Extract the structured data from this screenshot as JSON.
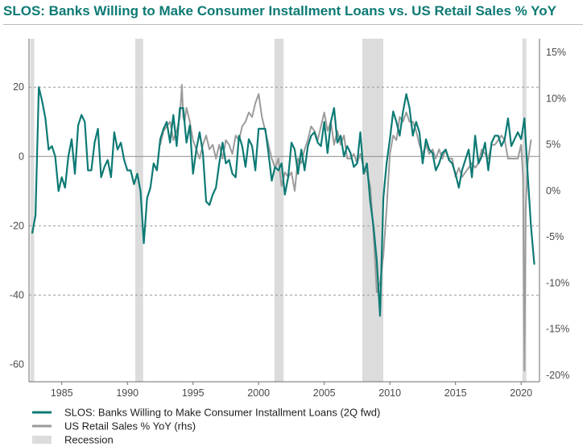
{
  "title": "SLOS: Banks Willing to Make Consumer Installment Loans vs. US Retail Sales % YoY",
  "colors": {
    "title": "#0d7a74",
    "slos": "#0d7a74",
    "retail": "#9b9b9b",
    "recession": "#dcdcdc",
    "grid": "#9a9a9a"
  },
  "chart_data": {
    "type": "line",
    "title": "SLOS: Banks Willing to Make Consumer Installment Loans vs. US Retail Sales % YoY",
    "x_range": [
      1982.5,
      2021.4
    ],
    "x_ticks": [
      {
        "value": 1985,
        "label": "1985"
      },
      {
        "value": 1990,
        "label": "1990"
      },
      {
        "value": 1995,
        "label": "1995"
      },
      {
        "value": 2000,
        "label": "2000"
      },
      {
        "value": 2005,
        "label": "2005"
      },
      {
        "value": 2010,
        "label": "2010"
      },
      {
        "value": 2015,
        "label": "2015"
      },
      {
        "value": 2020,
        "label": "2020"
      }
    ],
    "y_left": {
      "range": [
        -65,
        34
      ],
      "ticks": [
        -60,
        -40,
        -20,
        0,
        20
      ],
      "labels": [
        "-60",
        "-40",
        "-20",
        "0",
        "20"
      ],
      "gridlines": [
        -40,
        -20,
        20
      ]
    },
    "y_right": {
      "range": [
        -20.7,
        16.5
      ],
      "ticks": [
        15,
        10,
        5,
        0,
        -5,
        -10,
        -15,
        -20
      ],
      "labels": [
        "15%",
        "10%",
        "5%",
        "0%",
        "-5%",
        "-10%",
        "-15%",
        "-20%"
      ]
    },
    "zero_line": 0,
    "legend_position": "bottom-left",
    "legend": [
      {
        "label": "SLOS: Banks Willing to Make Consumer Installment Loans (2Q fwd)",
        "kind": "line",
        "color": "#0d7a74"
      },
      {
        "label": "US Retail Sales % YoY (rhs)",
        "kind": "line",
        "color": "#9b9b9b"
      },
      {
        "label": "Recession",
        "kind": "box",
        "color": "#dcdcdc"
      }
    ],
    "recessions": [
      [
        1982.6,
        1982.9
      ],
      [
        1990.6,
        1991.2
      ],
      [
        2001.2,
        2001.9
      ],
      [
        2007.9,
        2009.5
      ],
      [
        2020.1,
        2020.4
      ]
    ],
    "series": [
      {
        "name": "SLOS: Banks Willing to Make Consumer Installment Loans (2Q fwd)",
        "axis": "left",
        "x": [
          1982.75,
          1983.0,
          1983.25,
          1983.5,
          1983.75,
          1984.0,
          1984.25,
          1984.5,
          1984.75,
          1985.0,
          1985.25,
          1985.5,
          1985.75,
          1986.0,
          1986.25,
          1986.5,
          1986.75,
          1987.0,
          1987.25,
          1987.5,
          1987.75,
          1988.0,
          1988.25,
          1988.5,
          1988.75,
          1989.0,
          1989.25,
          1989.5,
          1989.75,
          1990.0,
          1990.25,
          1990.5,
          1990.75,
          1991.0,
          1991.25,
          1991.5,
          1991.75,
          1992.0,
          1992.25,
          1992.5,
          1992.75,
          1993.0,
          1993.25,
          1993.5,
          1993.75,
          1994.0,
          1994.25,
          1994.5,
          1994.75,
          1995.0,
          1995.25,
          1995.5,
          1995.75,
          1996.0,
          1996.25,
          1996.5,
          1996.75,
          1997.0,
          1997.25,
          1997.5,
          1997.75,
          1998.0,
          1998.25,
          1998.5,
          1998.75,
          1999.0,
          1999.25,
          1999.5,
          1999.75,
          2000.0,
          2000.25,
          2000.5,
          2000.75,
          2001.0,
          2001.25,
          2001.5,
          2001.75,
          2002.0,
          2002.25,
          2002.5,
          2002.75,
          2003.0,
          2003.25,
          2003.5,
          2003.75,
          2004.0,
          2004.25,
          2004.5,
          2004.75,
          2005.0,
          2005.25,
          2005.5,
          2005.75,
          2006.0,
          2006.25,
          2006.5,
          2006.75,
          2007.0,
          2007.25,
          2007.5,
          2007.75,
          2008.0,
          2008.25,
          2008.5,
          2008.75,
          2009.0,
          2009.25,
          2009.5,
          2009.75,
          2010.0,
          2010.25,
          2010.5,
          2010.75,
          2011.0,
          2011.25,
          2011.5,
          2011.75,
          2012.0,
          2012.25,
          2012.5,
          2012.75,
          2013.0,
          2013.25,
          2013.5,
          2013.75,
          2014.0,
          2014.25,
          2014.5,
          2014.75,
          2015.0,
          2015.25,
          2015.5,
          2015.75,
          2016.0,
          2016.25,
          2016.5,
          2016.75,
          2017.0,
          2017.25,
          2017.5,
          2017.75,
          2018.0,
          2018.25,
          2018.5,
          2018.75,
          2019.0,
          2019.25,
          2019.5,
          2019.75,
          2020.0,
          2020.25,
          2020.5,
          2020.75,
          2021.0
        ],
        "y": [
          -22,
          -17,
          20,
          16,
          11,
          2,
          3,
          0,
          -10,
          -6,
          -9,
          0,
          5,
          -5,
          9,
          12,
          10,
          -4,
          -4,
          4,
          8,
          -6,
          -3,
          -1,
          -6,
          7,
          2,
          4,
          -1,
          -4,
          -4,
          -8,
          -5,
          -10,
          -25,
          -12,
          -9,
          -2,
          -4,
          5,
          8,
          10,
          4,
          12,
          3,
          14,
          14,
          4,
          9,
          -5,
          2,
          7,
          1,
          -13,
          -14,
          -11,
          -9,
          -2,
          4,
          -2,
          -1,
          -5,
          -6,
          6,
          3,
          -3,
          5,
          3,
          -4,
          8,
          8,
          8,
          1,
          -7,
          -3,
          -4,
          -2,
          -11,
          -6,
          4,
          2,
          -5,
          2,
          -4,
          3,
          6,
          7,
          4,
          3,
          10,
          1,
          10,
          14,
          4,
          6,
          0,
          3,
          1,
          -3,
          -2,
          7,
          -5,
          -2,
          -13,
          -20,
          -30,
          -46,
          -12,
          -2,
          5,
          13,
          10,
          6,
          13,
          18,
          14,
          6,
          10,
          7,
          -2,
          5,
          2,
          1,
          -4,
          -2,
          1,
          2,
          -1,
          -2,
          -5,
          -9,
          -4,
          -1,
          2,
          -6,
          6,
          -2,
          0,
          4,
          -4,
          4,
          6,
          6,
          3,
          5,
          11,
          3,
          5,
          7,
          5,
          11,
          -5,
          -20,
          -31
        ],
        "color": "#0d7a74"
      },
      {
        "name": "US Retail Sales % YoY (rhs)",
        "axis": "right",
        "x": [
          1992.5,
          1992.75,
          1993.0,
          1993.25,
          1993.5,
          1993.75,
          1994.0,
          1994.15,
          1994.25,
          1994.35,
          1994.5,
          1994.75,
          1995.0,
          1995.25,
          1995.5,
          1995.75,
          1996.0,
          1996.25,
          1996.5,
          1996.75,
          1997.0,
          1997.25,
          1997.5,
          1997.75,
          1998.0,
          1998.25,
          1998.5,
          1998.75,
          1999.0,
          1999.25,
          1999.5,
          1999.75,
          2000.0,
          2000.25,
          2000.5,
          2000.75,
          2001.0,
          2001.25,
          2001.5,
          2001.75,
          2002.0,
          2002.25,
          2002.5,
          2002.75,
          2003.0,
          2003.25,
          2003.5,
          2003.75,
          2004.0,
          2004.25,
          2004.5,
          2004.75,
          2005.0,
          2005.25,
          2005.5,
          2005.75,
          2006.0,
          2006.25,
          2006.5,
          2006.75,
          2007.0,
          2007.25,
          2007.5,
          2007.75,
          2008.0,
          2008.25,
          2008.5,
          2008.75,
          2009.0,
          2009.25,
          2009.5,
          2009.75,
          2010.0,
          2010.25,
          2010.5,
          2010.75,
          2011.0,
          2011.25,
          2011.5,
          2011.75,
          2012.0,
          2012.25,
          2012.5,
          2012.75,
          2013.0,
          2013.25,
          2013.5,
          2013.75,
          2014.0,
          2014.25,
          2014.5,
          2014.75,
          2015.0,
          2015.25,
          2015.5,
          2015.75,
          2016.0,
          2016.25,
          2016.5,
          2016.75,
          2017.0,
          2017.25,
          2017.5,
          2017.75,
          2018.0,
          2018.25,
          2018.5,
          2018.75,
          2019.0,
          2019.25,
          2019.5,
          2019.75,
          2020.0,
          2020.15,
          2020.25,
          2020.35,
          2020.5,
          2020.75
        ],
        "y": [
          5.0,
          6.5,
          7.0,
          7.5,
          5.5,
          6.5,
          8.0,
          11.5,
          8.0,
          7.5,
          9.0,
          7.5,
          5.5,
          4.5,
          3.5,
          5.0,
          6.0,
          4.5,
          5.0,
          3.5,
          5.0,
          3.5,
          5.5,
          5.0,
          4.0,
          6.0,
          5.5,
          7.0,
          7.5,
          8.5,
          8.0,
          9.5,
          10.5,
          8.0,
          6.5,
          5.0,
          3.5,
          2.5,
          3.5,
          0.5,
          2.0,
          1.5,
          2.0,
          0.0,
          3.5,
          3.0,
          4.5,
          5.5,
          7.0,
          6.5,
          5.5,
          7.0,
          8.5,
          6.5,
          7.5,
          5.0,
          6.5,
          5.0,
          6.0,
          3.5,
          3.5,
          4.0,
          3.0,
          4.0,
          2.5,
          2.0,
          0.5,
          -4.5,
          -11.0,
          -10.0,
          -7.0,
          -2.0,
          4.0,
          6.0,
          5.5,
          8.0,
          7.5,
          8.5,
          7.5,
          7.5,
          6.5,
          5.0,
          4.0,
          5.0,
          4.0,
          4.5,
          3.5,
          4.5,
          3.5,
          4.5,
          3.5,
          3.5,
          1.5,
          2.5,
          1.5,
          2.0,
          2.5,
          3.0,
          2.5,
          3.0,
          4.5,
          4.0,
          3.5,
          5.0,
          5.0,
          5.5,
          6.0,
          5.5,
          3.5,
          3.5,
          3.5,
          3.5,
          5.0,
          1.5,
          -19.5,
          -2.0,
          3.0,
          5.5
        ],
        "color": "#9b9b9b"
      }
    ]
  }
}
